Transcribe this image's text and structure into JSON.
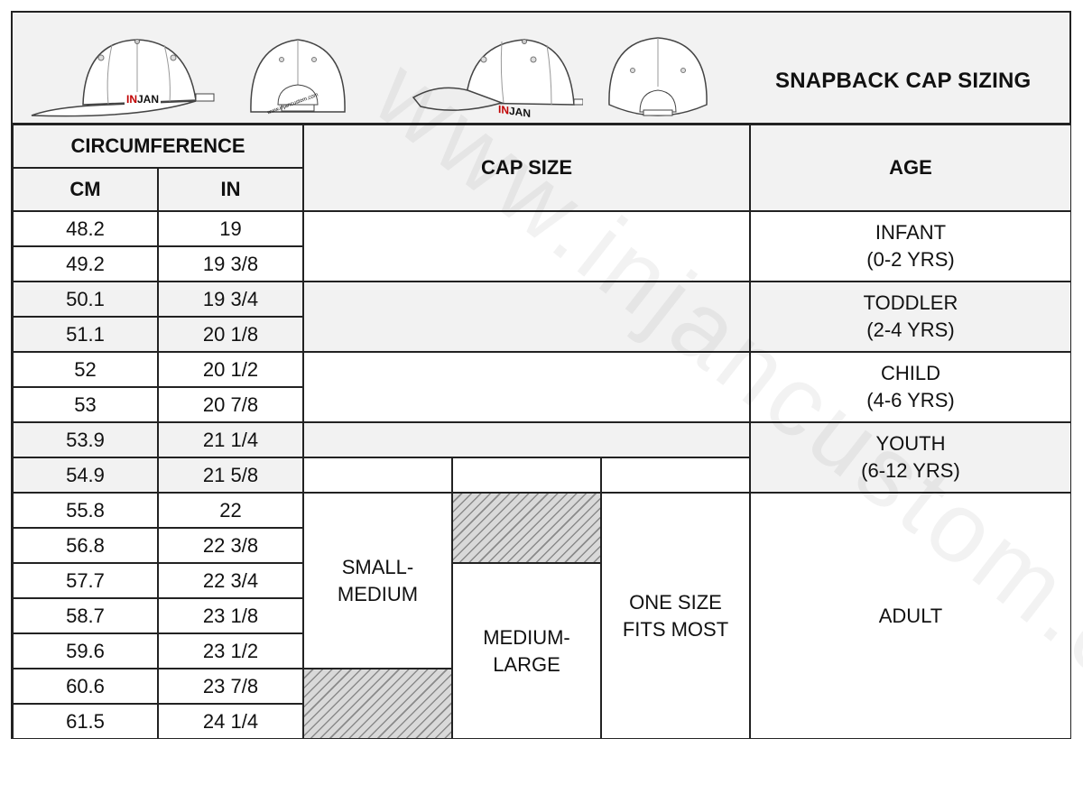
{
  "title": "SNAPBACK CAP SIZING",
  "brand": "INJAN",
  "watermark": "www.injancustom.com",
  "cap_print": "www.injancustom.com",
  "headers": {
    "circumference": "CIRCUMFERENCE",
    "cm": "CM",
    "in": "IN",
    "cap_size": "CAP SIZE",
    "age": "AGE"
  },
  "rows": [
    {
      "cm": "48.2",
      "in": "19"
    },
    {
      "cm": "49.2",
      "in": "19 3/8"
    },
    {
      "cm": "50.1",
      "in": "19 3/4"
    },
    {
      "cm": "51.1",
      "in": "20 1/8"
    },
    {
      "cm": "52",
      "in": "20 1/2"
    },
    {
      "cm": "53",
      "in": "20 7/8"
    },
    {
      "cm": "53.9",
      "in": "21 1/4"
    },
    {
      "cm": "54.9",
      "in": "21 5/8"
    },
    {
      "cm": "55.8",
      "in": "22"
    },
    {
      "cm": "56.8",
      "in": "22 3/8"
    },
    {
      "cm": "57.7",
      "in": "22 3/4"
    },
    {
      "cm": "58.7",
      "in": "23 1/8"
    },
    {
      "cm": "59.6",
      "in": "23 1/2"
    },
    {
      "cm": "60.6",
      "in": "23 7/8"
    },
    {
      "cm": "61.5",
      "in": "24 1/4"
    }
  ],
  "sizes": {
    "small_medium": "SMALL-\nMEDIUM",
    "medium_large": "MEDIUM-\nLARGE",
    "one_size": "ONE SIZE\nFITS MOST"
  },
  "ages": [
    {
      "label": "INFANT\n(0-2 YRS)"
    },
    {
      "label": "TODDLER\n(2-4 YRS)"
    },
    {
      "label": "CHILD\n(4-6 YRS)"
    },
    {
      "label": "YOUTH\n(6-12 YRS)"
    },
    {
      "label": "ADULT"
    }
  ]
}
